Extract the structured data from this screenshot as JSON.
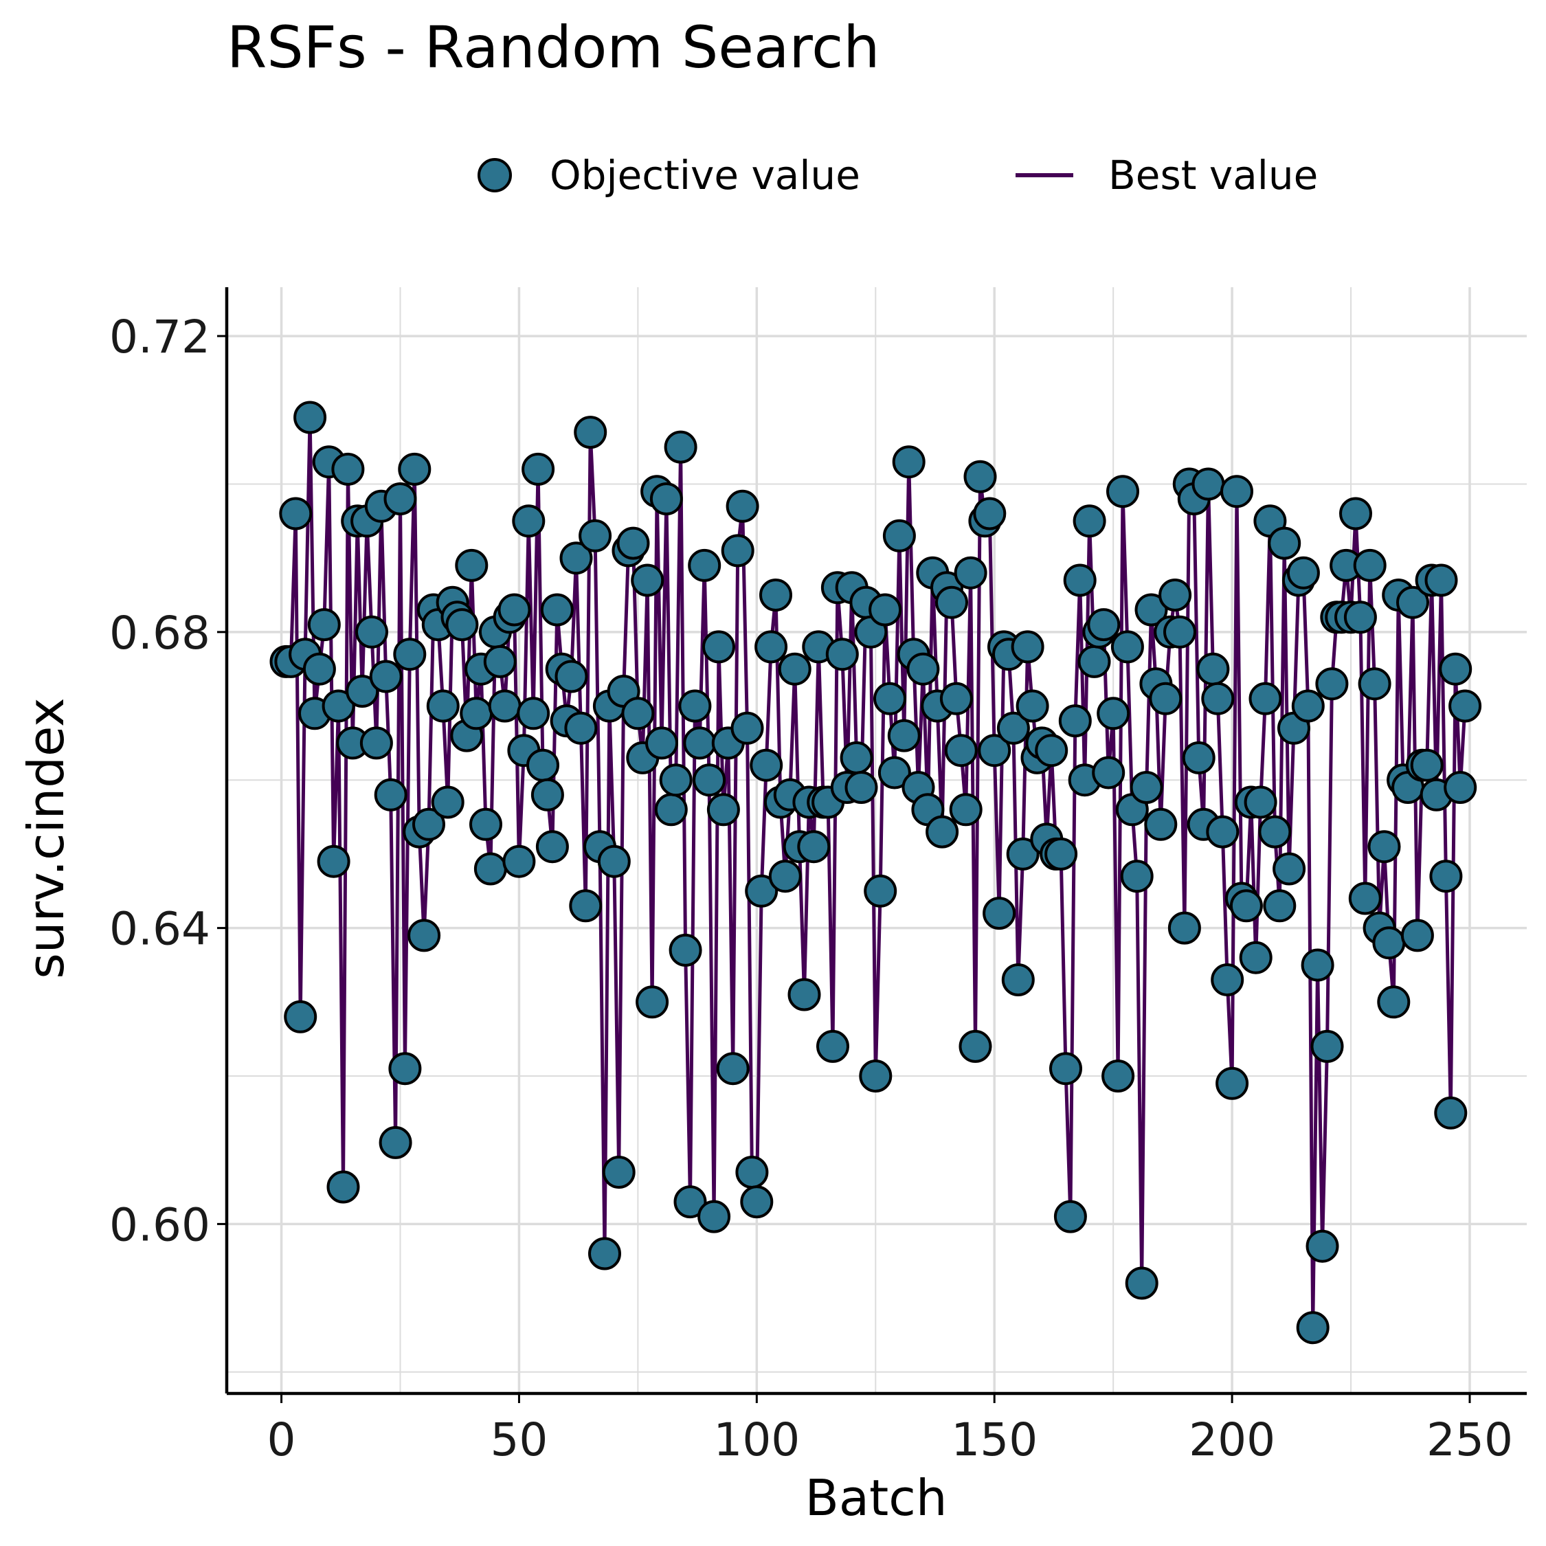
{
  "colors": {
    "point_fill": "#2c738e",
    "point_stroke": "#000000",
    "line": "#440154",
    "grid": "#dcdcdc",
    "axis": "#000000"
  },
  "chart_data": {
    "type": "scatter",
    "title": "RSFs - Random Search",
    "xlabel": "Batch",
    "ylabel": "surv.cindex",
    "xlim": [
      -11.5,
      262
    ],
    "ylim": [
      0.5771,
      0.7266
    ],
    "x_ticks": [
      0,
      50,
      100,
      150,
      200,
      250
    ],
    "x_tick_labels": [
      "0",
      "50",
      "100",
      "150",
      "200",
      "250"
    ],
    "y_ticks": [
      0.6,
      0.64,
      0.68,
      0.72
    ],
    "y_tick_labels": [
      "0.60",
      "0.64",
      "0.68",
      "0.72"
    ],
    "grid": true,
    "legend_position": "top",
    "legend": [
      {
        "label": "Objective value",
        "kind": "point"
      },
      {
        "label": "Best value",
        "kind": "line"
      }
    ],
    "series": [
      {
        "name": "Objective value",
        "x_start": 1,
        "values": [
          0.676,
          0.676,
          0.696,
          0.628,
          0.677,
          0.709,
          0.669,
          0.675,
          0.681,
          0.703,
          0.649,
          0.67,
          0.605,
          0.702,
          0.665,
          0.695,
          0.672,
          0.695,
          0.68,
          0.665,
          0.697,
          0.674,
          0.658,
          0.611,
          0.698,
          0.621,
          0.677,
          0.702,
          0.653,
          0.639,
          0.654,
          0.683,
          0.681,
          0.67,
          0.657,
          0.684,
          0.682,
          0.681,
          0.666,
          0.689,
          0.669,
          0.675,
          0.654,
          0.648,
          0.68,
          0.676,
          0.67,
          0.682,
          0.683,
          0.649,
          0.664,
          0.695,
          0.669,
          0.702,
          0.662,
          0.658,
          0.651,
          0.683,
          0.675,
          0.668,
          0.674,
          0.69,
          0.667,
          0.643,
          0.707,
          0.693,
          0.651,
          0.596,
          0.67,
          0.649,
          0.607,
          0.672,
          0.691,
          0.692,
          0.669,
          0.663,
          0.687,
          0.63,
          0.699,
          0.665,
          0.698,
          0.656,
          0.66,
          0.705,
          0.637,
          0.603,
          0.67,
          0.665,
          0.689,
          0.66,
          0.601,
          0.678,
          0.656,
          0.665,
          0.621,
          0.691,
          0.697,
          0.667,
          0.607,
          0.603,
          0.645,
          0.662,
          0.678,
          0.685,
          0.657,
          0.647,
          0.658,
          0.675,
          0.651,
          0.631,
          0.657,
          0.651,
          0.678,
          0.657,
          0.657,
          0.624,
          0.686,
          0.677,
          0.659,
          0.686,
          0.663,
          0.659,
          0.684,
          0.68,
          0.62,
          0.645,
          0.683,
          0.671,
          0.661,
          0.693,
          0.666,
          0.703,
          0.677,
          0.659,
          0.675,
          0.656,
          0.688,
          0.67,
          0.653,
          0.686,
          0.684,
          0.671,
          0.664,
          0.656,
          0.688,
          0.624,
          0.701,
          0.695,
          0.696,
          0.664,
          0.642,
          0.678,
          0.677,
          0.667,
          0.633,
          0.65,
          0.678,
          0.67,
          0.663,
          0.665,
          0.652,
          0.664,
          0.65,
          0.65,
          0.621,
          0.601,
          0.668,
          0.687,
          0.66,
          0.695,
          0.676,
          0.68,
          0.681,
          0.661,
          0.669,
          0.62,
          0.699,
          0.678,
          0.656,
          0.647,
          0.592,
          0.659,
          0.683,
          0.673,
          0.654,
          0.671,
          0.68,
          0.685,
          0.68,
          0.64,
          0.7,
          0.698,
          0.663,
          0.654,
          0.7,
          0.675,
          0.671,
          0.653,
          0.633,
          0.619,
          0.699,
          0.644,
          0.643,
          0.657,
          0.636,
          0.657,
          0.671,
          0.695,
          0.653,
          0.643,
          0.692,
          0.648,
          0.667,
          0.687,
          0.688,
          0.67,
          0.586,
          0.635,
          0.597,
          0.624,
          0.673,
          0.682,
          0.682,
          0.689,
          0.682,
          0.696,
          0.682,
          0.644,
          0.689,
          0.673,
          0.64,
          0.651,
          0.638,
          0.63,
          0.685,
          0.66,
          0.659,
          0.684,
          0.639,
          0.662,
          0.662,
          0.687,
          0.658,
          0.687,
          0.647,
          0.615,
          0.675,
          0.659,
          0.67
        ]
      }
    ]
  }
}
